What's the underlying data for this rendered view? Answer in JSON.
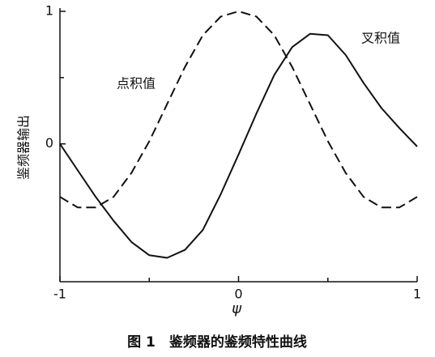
{
  "chart_data": {
    "type": "line",
    "title": "图 1　鉴频器的鉴频特性曲线",
    "xlabel": "ψ",
    "ylabel": "鉴频器输出",
    "x": [
      -1,
      -0.9,
      -0.8,
      -0.7,
      -0.6,
      -0.5,
      -0.4,
      -0.3,
      -0.2,
      -0.1,
      0,
      0.1,
      0.2,
      0.3,
      0.4,
      0.5,
      0.6,
      0.7,
      0.8,
      0.9,
      1
    ],
    "series": [
      {
        "name": "点积值",
        "color": "#111111",
        "dashed": true,
        "values": [
          -0.4,
          -0.48,
          -0.48,
          -0.4,
          -0.22,
          0.02,
          0.3,
          0.58,
          0.82,
          0.96,
          1,
          0.96,
          0.82,
          0.58,
          0.3,
          0.02,
          -0.22,
          -0.4,
          -0.48,
          -0.48,
          -0.4
        ]
      },
      {
        "name": "叉积值",
        "color": "#111111",
        "dashed": false,
        "values": [
          0,
          -0.2,
          -0.4,
          -0.58,
          -0.74,
          -0.84,
          -0.86,
          -0.8,
          -0.65,
          -0.38,
          -0.08,
          0.23,
          0.52,
          0.73,
          0.83,
          0.82,
          0.67,
          0.46,
          0.27,
          0.12,
          -0.02
        ]
      }
    ],
    "xlim": [
      -1,
      1
    ],
    "xticks": [
      -1,
      0,
      1
    ],
    "xminorticks": [
      -0.5,
      0.5
    ],
    "ylim": [
      -1.04,
      1
    ],
    "yticks": [
      0,
      1
    ],
    "yminorticks": [
      0.5
    ]
  }
}
